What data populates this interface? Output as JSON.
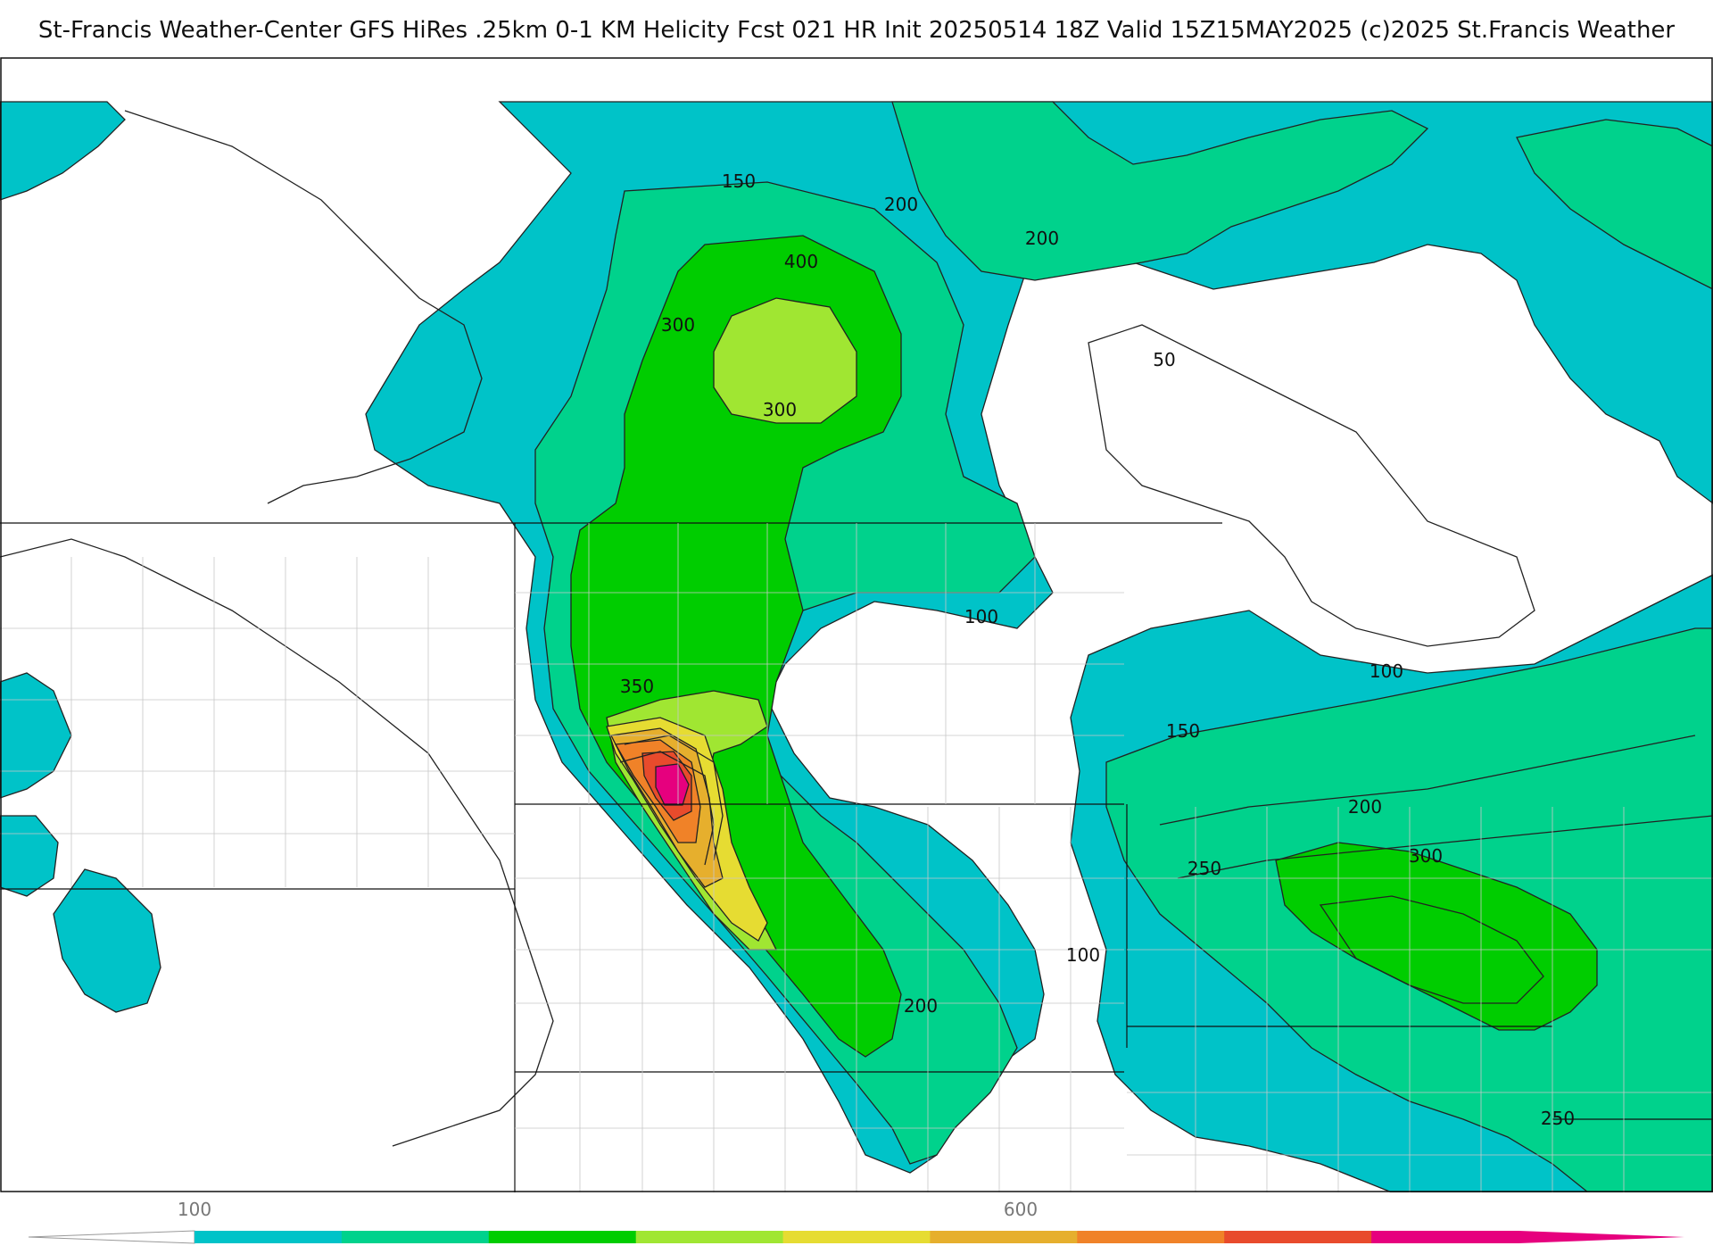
{
  "header": {
    "title": "St-Francis Weather-Center GFS HiRes .25km 0-1 KM Helicity Fcst 021 HR Init 20250514 18Z  Valid 15Z15MAY2025    (c)2025 St.Francis Weather"
  },
  "map": {
    "contour_labels": [
      {
        "id": "c150a",
        "text": "150"
      },
      {
        "id": "c200a",
        "text": "200"
      },
      {
        "id": "c200b",
        "text": "200"
      },
      {
        "id": "c400",
        "text": "400"
      },
      {
        "id": "c300a",
        "text": "300"
      },
      {
        "id": "c300b",
        "text": "300"
      },
      {
        "id": "c50",
        "text": "50"
      },
      {
        "id": "c100a",
        "text": "100"
      },
      {
        "id": "c350",
        "text": "350"
      },
      {
        "id": "c100b",
        "text": "100"
      },
      {
        "id": "c150b",
        "text": "150"
      },
      {
        "id": "c200c",
        "text": "200"
      },
      {
        "id": "c250a",
        "text": "250"
      },
      {
        "id": "c300c",
        "text": "300"
      },
      {
        "id": "c100c",
        "text": "100"
      },
      {
        "id": "c200d",
        "text": "200"
      },
      {
        "id": "c250b",
        "text": "250"
      }
    ]
  },
  "colorbar": {
    "tick_labels": [
      "100",
      "600"
    ],
    "colors": [
      "#00c3c8",
      "#00d28c",
      "#00cd00",
      "#a0e632",
      "#e6dc32",
      "#e6af2d",
      "#f08228",
      "#e84b2c",
      "#e6007e"
    ]
  }
}
